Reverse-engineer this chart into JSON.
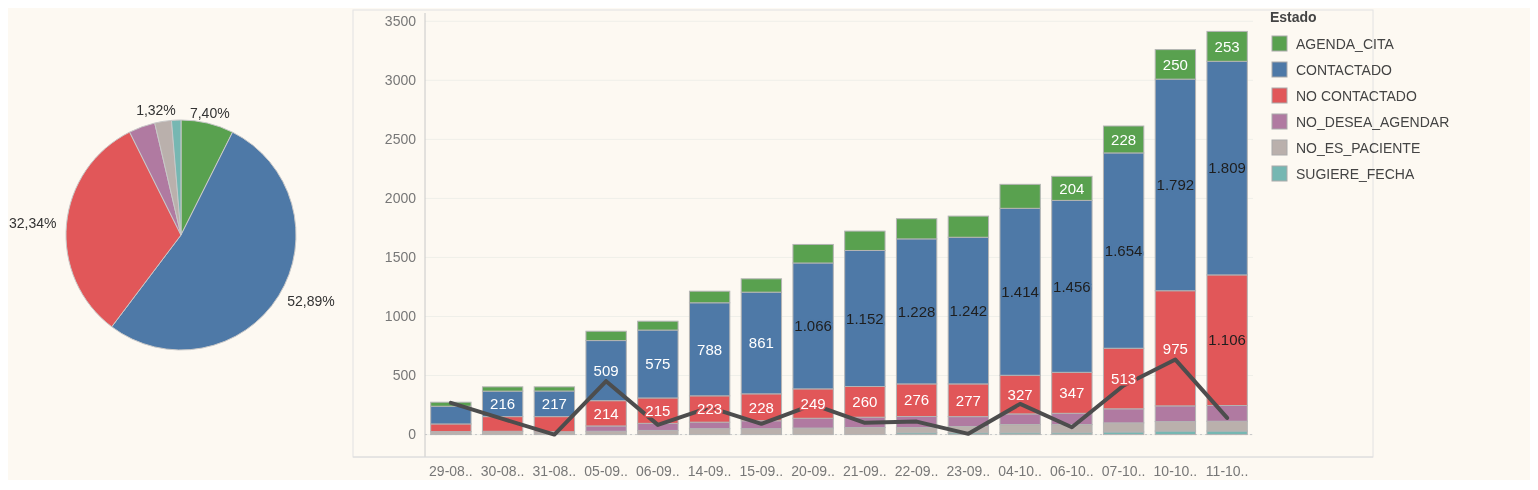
{
  "chart_data": [
    {
      "type": "pie",
      "categories": [
        null,
        null,
        null,
        null,
        null,
        null
      ],
      "values": [
        7.4,
        52.89,
        32.34,
        3.7,
        2.35,
        1.32
      ],
      "colors": [
        "#59a14f",
        "#4e79a7",
        "#e15759",
        "#b07aa1",
        "#bab0ac",
        "#76b7b2"
      ],
      "value_labels": [
        "7,40%",
        "52,89%",
        "32,34%",
        null,
        null,
        "1,32%"
      ],
      "legend": false
    },
    {
      "type": "bar",
      "stacked": true,
      "legend": "right",
      "legend_title": "Estado",
      "grid": "y",
      "categories": [
        "29-08..",
        "30-08..",
        "31-08..",
        "05-09..",
        "06-09..",
        "14-09..",
        "15-09..",
        "20-09..",
        "21-09..",
        "22-09..",
        "23-09..",
        "04-10..",
        "06-10..",
        "07-10..",
        "10-10..",
        "11-10.."
      ],
      "ylim": [
        -190,
        3570
      ],
      "yticks": [
        0,
        500,
        1000,
        1500,
        2000,
        2500,
        3000,
        3500
      ],
      "ref_lines": [
        {
          "axis": "y",
          "value": 0,
          "line_style": "dotted",
          "color": "#c8c8c8"
        }
      ],
      "series": [
        {
          "name": "SUGIERE_FECHA",
          "color": "#76b7b2",
          "values": [
            0,
            0,
            0,
            0,
            0,
            0,
            0,
            0,
            0,
            15,
            15,
            15,
            15,
            22,
            30,
            30
          ]
        },
        {
          "name": "NO_ES_PACIENTE",
          "color": "#bab0ac",
          "values": [
            25,
            28,
            24,
            28,
            35,
            50,
            50,
            55,
            60,
            45,
            53,
            70,
            70,
            77,
            80,
            83
          ]
        },
        {
          "name": "NO_DESEA_AGENDAR",
          "color": "#b07aa1",
          "values": [
            0,
            0,
            0,
            45,
            60,
            55,
            67,
            83,
            87,
            93,
            84,
            90,
            95,
            119,
            133,
            133
          ]
        },
        {
          "name": "NO CONTACTADO",
          "color": "#e15759",
          "values": [
            65,
            124,
            128,
            214,
            215,
            223,
            228,
            249,
            260,
            276,
            277,
            327,
            347,
            513,
            975,
            1106
          ],
          "value_labels": [
            null,
            null,
            null,
            "214",
            "215",
            "223",
            "228",
            "249",
            "260",
            "276",
            "277",
            "327",
            "347",
            "513",
            "975",
            "1.106"
          ]
        },
        {
          "name": "CONTACTADO",
          "color": "#4e79a7",
          "values": [
            150,
            216,
            217,
            509,
            575,
            788,
            861,
            1066,
            1152,
            1228,
            1242,
            1414,
            1456,
            1654,
            1792,
            1809
          ],
          "value_labels": [
            null,
            "216",
            "217",
            "509",
            "575",
            "788",
            "861",
            "1.066",
            "1.152",
            "1.228",
            "1.242",
            "1.414",
            "1.456",
            "1.654",
            "1.792",
            "1.809"
          ]
        },
        {
          "name": "AGENDA_CITA",
          "color": "#59a14f",
          "values": [
            34,
            36,
            35,
            79,
            75,
            98,
            113,
            157,
            164,
            171,
            179,
            203,
            204,
            228,
            250,
            253
          ],
          "value_labels": [
            null,
            null,
            null,
            null,
            null,
            null,
            null,
            null,
            null,
            null,
            null,
            null,
            "204",
            "228",
            "250",
            "253"
          ]
        },
        {
          "type": "line",
          "color": "#4d4d4d",
          "values": [
            268,
            133,
            0,
            452,
            82,
            231,
            91,
            254,
            99,
            110,
            6,
            260,
            62,
            415,
            635,
            141
          ]
        }
      ]
    }
  ]
}
